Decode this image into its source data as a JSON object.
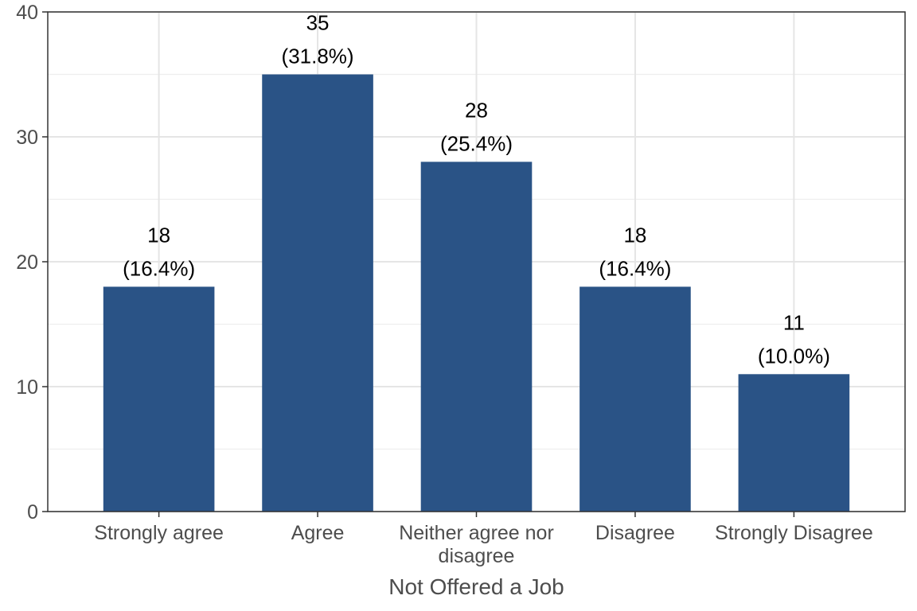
{
  "chart_data": {
    "type": "bar",
    "title": "",
    "xlabel": "Not Offered a Job",
    "ylabel": "",
    "categories": [
      [
        "Strongly agree"
      ],
      [
        "Agree"
      ],
      [
        "Neither agree nor",
        "disagree"
      ],
      [
        "Disagree"
      ],
      [
        "Strongly Disagree"
      ]
    ],
    "values": [
      18,
      35,
      28,
      18,
      11
    ],
    "percent_labels": [
      "(16.4%)",
      "(31.8%)",
      "(25.4%)",
      "(16.4%)",
      "(10.0%)"
    ],
    "ylim": [
      0,
      40
    ],
    "yticks": [
      0,
      10,
      20,
      30,
      40
    ],
    "grid": true,
    "legend": "none",
    "colors": {
      "bar": "#2a5386",
      "panel_border": "#333333",
      "grid_major": "#e5e5e5",
      "grid_minor": "#eeeeee",
      "tick_text": "#4d4d4d",
      "label_text": "#000000"
    }
  }
}
